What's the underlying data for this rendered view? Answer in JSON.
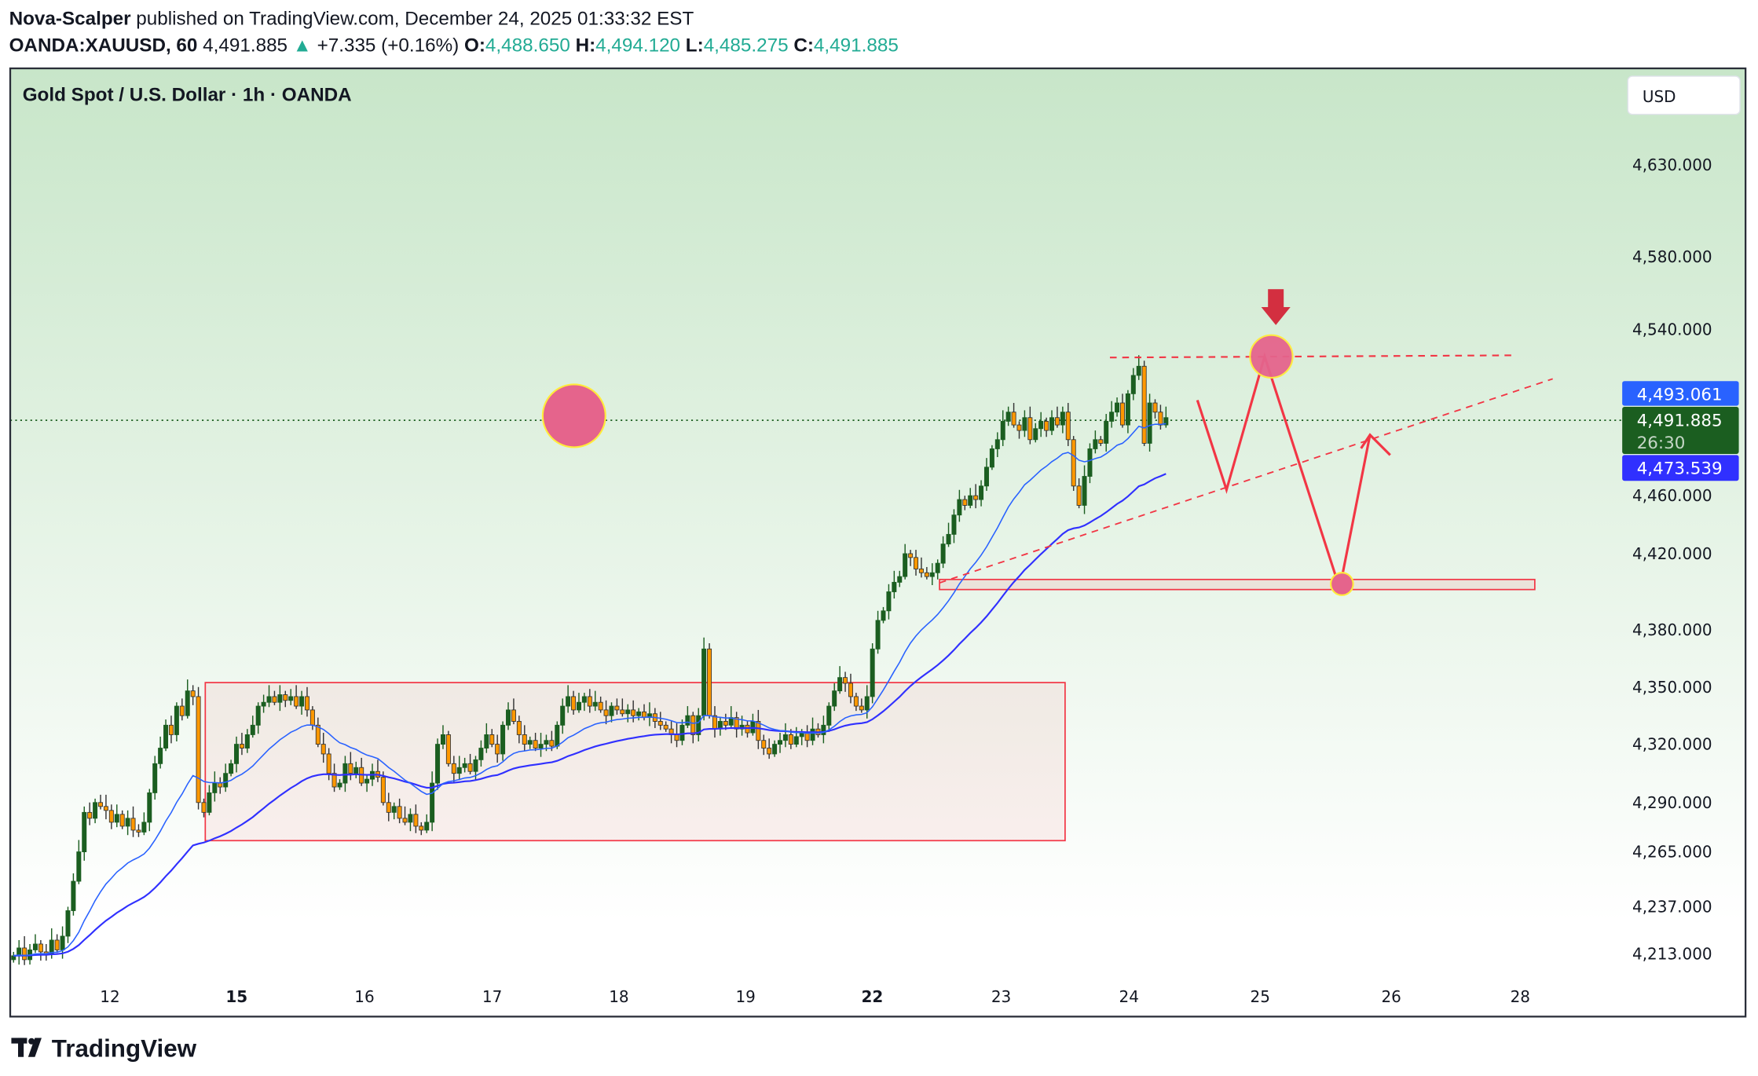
{
  "header": {
    "author": "Nova-Scalper",
    "published": " published on TradingView.com, December 24, 2025 01:33:32 EST",
    "symbol": "OANDA:XAUUSD, 60",
    "last": "4,491.885",
    "change": "+7.335 (+0.16%)",
    "o_label": "O:",
    "o": "4,488.650",
    "h_label": "H:",
    "h": "4,494.120",
    "l_label": "L:",
    "l": "4,485.275",
    "c_label": "C:",
    "c": "4,491.885"
  },
  "chart": {
    "title": "Gold Spot / U.S. Dollar · 1h · OANDA",
    "currency_button": "USD",
    "badges": {
      "ema_fast": "4,493.061",
      "last_price": "4,491.885",
      "countdown": "26:30",
      "ema_slow": "4,473.539"
    },
    "footer_logo": "TradingView"
  },
  "colors": {
    "up": "#1b5e20",
    "down": "#ff9800",
    "ema_fast": "#2962ff",
    "ema_slow": "#3030ff",
    "drawing": "#f23645",
    "circle_fill": "#e5648c",
    "circle_stroke": "#ffeb3b",
    "bg_top": "#c8e6c9",
    "bg_bottom": "#ffffff"
  },
  "chart_data": {
    "type": "candlestick",
    "interval": "1h",
    "ylabel_ticks": [
      "4,630.000",
      "4,580.000",
      "4,540.000",
      "4,460.000",
      "4,420.000",
      "4,380.000",
      "4,350.000",
      "4,320.000",
      "4,290.000",
      "4,265.000",
      "4,237.000",
      "4,213.000"
    ],
    "y_tick_values": [
      4630,
      4580,
      4540,
      4460,
      4420,
      4380,
      4350,
      4320,
      4290,
      4265,
      4237,
      4213
    ],
    "x_ticks": [
      {
        "label": "12",
        "bold": false
      },
      {
        "label": "15",
        "bold": true
      },
      {
        "label": "16",
        "bold": false
      },
      {
        "label": "17",
        "bold": false
      },
      {
        "label": "18",
        "bold": false
      },
      {
        "label": "19",
        "bold": false
      },
      {
        "label": "22",
        "bold": true
      },
      {
        "label": "23",
        "bold": false
      },
      {
        "label": "24",
        "bold": false
      },
      {
        "label": "25",
        "bold": false
      },
      {
        "label": "26",
        "bold": false
      },
      {
        "label": "28",
        "bold": false
      }
    ],
    "last_price": 4491.885,
    "ema_fast_value": 4493.061,
    "ema_slow_value": 4473.539,
    "closes": [
      4212,
      4216,
      4210,
      4215,
      4218,
      4214,
      4213,
      4220,
      4215,
      4222,
      4235,
      4250,
      4265,
      4285,
      4282,
      4290,
      4288,
      4286,
      4280,
      4284,
      4278,
      4282,
      4276,
      4275,
      4280,
      4295,
      4310,
      4318,
      4330,
      4325,
      4340,
      4335,
      4348,
      4345,
      4290,
      4285,
      4295,
      4300,
      4298,
      4305,
      4310,
      4320,
      4318,
      4325,
      4330,
      4340,
      4342,
      4345,
      4342,
      4346,
      4343,
      4345,
      4340,
      4345,
      4338,
      4330,
      4320,
      4315,
      4305,
      4298,
      4300,
      4310,
      4305,
      4308,
      4300,
      4302,
      4306,
      4303,
      4290,
      4285,
      4288,
      4282,
      4280,
      4284,
      4278,
      4276,
      4280,
      4300,
      4320,
      4325,
      4310,
      4305,
      4308,
      4310,
      4306,
      4312,
      4318,
      4325,
      4320,
      4315,
      4330,
      4338,
      4332,
      4325,
      4320,
      4322,
      4318,
      4320,
      4322,
      4319,
      4330,
      4340,
      4345,
      4338,
      4342,
      4345,
      4340,
      4342,
      4338,
      4335,
      4340,
      4338,
      4336,
      4338,
      4335,
      4337,
      4334,
      4336,
      4332,
      4330,
      4328,
      4325,
      4322,
      4330,
      4335,
      4325,
      4335,
      4370,
      4335,
      4328,
      4332,
      4330,
      4334,
      4328,
      4330,
      4326,
      4332,
      4322,
      4318,
      4315,
      4320,
      4322,
      4325,
      4320,
      4324,
      4326,
      4322,
      4328,
      4325,
      4330,
      4340,
      4348,
      4355,
      4352,
      4345,
      4340,
      4338,
      4345,
      4370,
      4385,
      4390,
      4400,
      4405,
      4408,
      4420,
      4418,
      4412,
      4410,
      4408,
      4410,
      4415,
      4425,
      4430,
      4440,
      4448,
      4445,
      4450,
      4448,
      4455,
      4465,
      4475,
      4480,
      4490,
      4495,
      4488,
      4485,
      4492,
      4480,
      4486,
      4490,
      4485,
      4492,
      4488,
      4495,
      4480,
      4455,
      4445,
      4460,
      4475,
      4480,
      4478,
      4490,
      4495,
      4500,
      4488,
      4505,
      4515,
      4520,
      4478,
      4500,
      4495,
      4488,
      4492
    ],
    "ema_periods": [
      20,
      50
    ]
  }
}
